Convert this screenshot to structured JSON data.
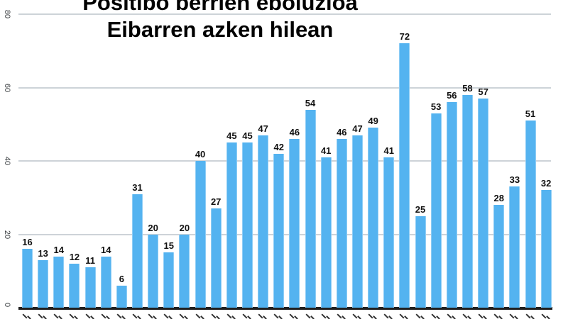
{
  "title": {
    "line1": "Positibo berrien eboluzioa",
    "line2": "Eibarren azken hilean"
  },
  "chart_data": {
    "type": "bar",
    "title": "Positibo berrien eboluzioa Eibarren azken hilean",
    "values": [
      16,
      13,
      14,
      12,
      11,
      14,
      6,
      31,
      20,
      15,
      20,
      40,
      27,
      45,
      45,
      47,
      42,
      46,
      54,
      41,
      46,
      47,
      49,
      41,
      72,
      25,
      53,
      56,
      58,
      57,
      28,
      33,
      51,
      32
    ],
    "n_bars": 34,
    "y_ticks": [
      0,
      20,
      40,
      60,
      80
    ],
    "ylim": [
      0,
      80
    ],
    "grid": true,
    "legend_position": "none",
    "data_labels": "value shown above each bar in bold",
    "x_tick_labels": "rotated labels clipped at bottom edge of image (illegible fragments)",
    "colors": {
      "bar": "#54b3f0",
      "grid": "#cdd3d8",
      "axis": "#1f1f1f",
      "data_label": "#111111",
      "tick_label": "#3c4043",
      "title": "#000000"
    }
  }
}
